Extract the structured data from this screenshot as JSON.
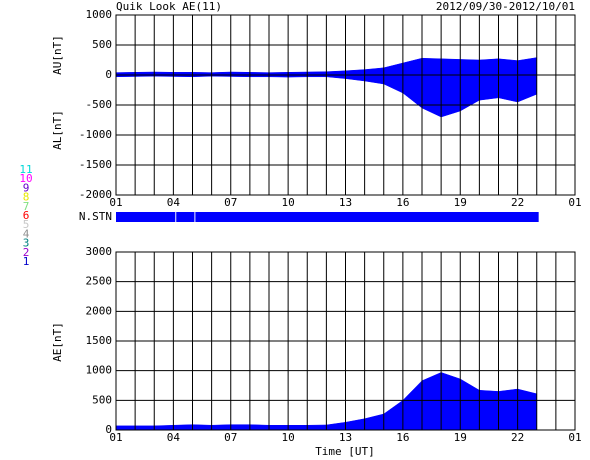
{
  "chart_data": [
    {
      "type": "area",
      "title": "Quik Look AE(11)",
      "subtitle": "2012/09/30-2012/10/01",
      "ylabels": [
        "AU[nT]",
        "AL[nT]"
      ],
      "x": [
        0,
        1,
        2,
        3,
        4,
        5,
        6,
        7,
        8,
        9,
        10,
        11,
        12,
        13,
        14,
        15,
        16,
        17,
        18,
        19,
        20,
        21,
        22
      ],
      "series": [
        {
          "name": "AU",
          "color": "#0000ff",
          "values": [
            40,
            45,
            50,
            45,
            45,
            40,
            50,
            45,
            40,
            45,
            50,
            55,
            70,
            90,
            120,
            200,
            280,
            270,
            260,
            250,
            270,
            240,
            290
          ]
        },
        {
          "name": "AL",
          "color": "#0000ff",
          "values": [
            -30,
            -25,
            -20,
            -25,
            -30,
            -20,
            -25,
            -30,
            -30,
            -35,
            -30,
            -30,
            -60,
            -100,
            -150,
            -300,
            -550,
            -700,
            -600,
            -420,
            -380,
            -450,
            -320
          ]
        }
      ],
      "xlim": [
        0,
        24
      ],
      "xticks": [
        {
          "value": 0,
          "label": "01"
        },
        {
          "value": 3,
          "label": "04"
        },
        {
          "value": 6,
          "label": "07"
        },
        {
          "value": 9,
          "label": "10"
        },
        {
          "value": 12,
          "label": "13"
        },
        {
          "value": 15,
          "label": "16"
        },
        {
          "value": 18,
          "label": "19"
        },
        {
          "value": 21,
          "label": "22"
        },
        {
          "value": 24,
          "label": "01"
        }
      ],
      "xgrid": [
        1,
        2,
        4,
        5,
        7,
        8,
        10,
        11,
        13,
        14,
        16,
        17,
        19,
        20,
        22,
        23
      ],
      "ylim": [
        -2000,
        1000
      ],
      "yticks": [
        1000,
        500,
        0,
        -500,
        -1000,
        -1500,
        -2000
      ],
      "grid": true,
      "stations_bar": {
        "label": "N.STN",
        "color": "#0000ff",
        "segments": [
          [
            0,
            3.1
          ],
          [
            3.15,
            4.1
          ],
          [
            4.15,
            22.1
          ]
        ]
      },
      "stations": [
        {
          "name": "11",
          "color": "#00d8d8"
        },
        {
          "name": "10",
          "color": "#ff00ff"
        },
        {
          "name": "9",
          "color": "#6600cc"
        },
        {
          "name": "8",
          "color": "#e8e800"
        },
        {
          "name": "7",
          "color": "#80e080"
        },
        {
          "name": "6",
          "color": "#ff0000"
        },
        {
          "name": "5",
          "color": "#c8c8c8"
        },
        {
          "name": "4",
          "color": "#909090"
        },
        {
          "name": "3",
          "color": "#008080"
        },
        {
          "name": "2",
          "color": "#9900cc"
        },
        {
          "name": "1",
          "color": "#0000cc"
        }
      ]
    },
    {
      "type": "area",
      "ylabel": "AE[nT]",
      "xlabel": "Time [UT]",
      "x": [
        0,
        1,
        2,
        3,
        4,
        5,
        6,
        7,
        8,
        9,
        10,
        11,
        12,
        13,
        14,
        15,
        16,
        17,
        18,
        19,
        20,
        21,
        22
      ],
      "series": [
        {
          "name": "AE",
          "color": "#0000ff",
          "values": [
            70,
            70,
            70,
            80,
            90,
            80,
            90,
            90,
            80,
            80,
            80,
            85,
            130,
            190,
            270,
            500,
            830,
            970,
            860,
            670,
            650,
            690,
            610
          ]
        }
      ],
      "xlim": [
        0,
        24
      ],
      "xticks": [
        {
          "value": 0,
          "label": "01"
        },
        {
          "value": 3,
          "label": "04"
        },
        {
          "value": 6,
          "label": "07"
        },
        {
          "value": 9,
          "label": "10"
        },
        {
          "value": 12,
          "label": "13"
        },
        {
          "value": 15,
          "label": "16"
        },
        {
          "value": 18,
          "label": "19"
        },
        {
          "value": 21,
          "label": "22"
        },
        {
          "value": 24,
          "label": "01"
        }
      ],
      "xgrid": [
        1,
        2,
        4,
        5,
        7,
        8,
        10,
        11,
        13,
        14,
        16,
        17,
        19,
        20,
        22,
        23
      ],
      "ylim": [
        0,
        3000
      ],
      "yticks": [
        0,
        500,
        1000,
        1500,
        2000,
        2500,
        3000
      ],
      "grid": true
    }
  ]
}
